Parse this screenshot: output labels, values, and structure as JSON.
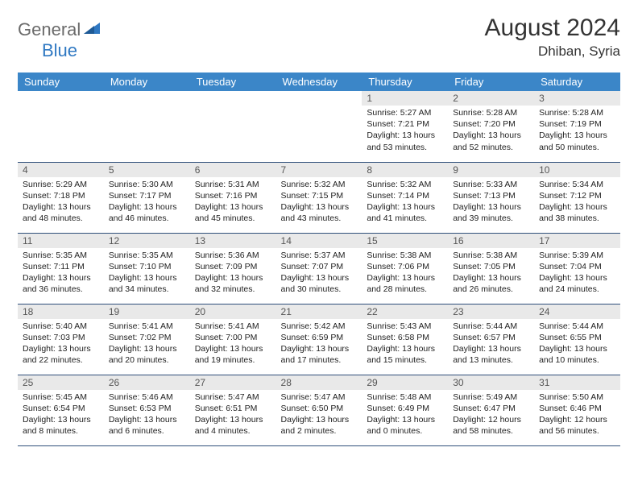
{
  "brand": {
    "word1": "General",
    "word2": "Blue",
    "color1": "#6b6b6b",
    "color2": "#2f78c2"
  },
  "title": "August 2024",
  "location": "Dhiban, Syria",
  "header_bg": "#3b86c8",
  "daynum_bg": "#e9e9e9",
  "row_border": "#2f4f7a",
  "weekdays": [
    "Sunday",
    "Monday",
    "Tuesday",
    "Wednesday",
    "Thursday",
    "Friday",
    "Saturday"
  ],
  "blanks_before": 4,
  "days": [
    {
      "n": 1,
      "sr": "5:27 AM",
      "ss": "7:21 PM",
      "dl": "13 hours and 53 minutes."
    },
    {
      "n": 2,
      "sr": "5:28 AM",
      "ss": "7:20 PM",
      "dl": "13 hours and 52 minutes."
    },
    {
      "n": 3,
      "sr": "5:28 AM",
      "ss": "7:19 PM",
      "dl": "13 hours and 50 minutes."
    },
    {
      "n": 4,
      "sr": "5:29 AM",
      "ss": "7:18 PM",
      "dl": "13 hours and 48 minutes."
    },
    {
      "n": 5,
      "sr": "5:30 AM",
      "ss": "7:17 PM",
      "dl": "13 hours and 46 minutes."
    },
    {
      "n": 6,
      "sr": "5:31 AM",
      "ss": "7:16 PM",
      "dl": "13 hours and 45 minutes."
    },
    {
      "n": 7,
      "sr": "5:32 AM",
      "ss": "7:15 PM",
      "dl": "13 hours and 43 minutes."
    },
    {
      "n": 8,
      "sr": "5:32 AM",
      "ss": "7:14 PM",
      "dl": "13 hours and 41 minutes."
    },
    {
      "n": 9,
      "sr": "5:33 AM",
      "ss": "7:13 PM",
      "dl": "13 hours and 39 minutes."
    },
    {
      "n": 10,
      "sr": "5:34 AM",
      "ss": "7:12 PM",
      "dl": "13 hours and 38 minutes."
    },
    {
      "n": 11,
      "sr": "5:35 AM",
      "ss": "7:11 PM",
      "dl": "13 hours and 36 minutes."
    },
    {
      "n": 12,
      "sr": "5:35 AM",
      "ss": "7:10 PM",
      "dl": "13 hours and 34 minutes."
    },
    {
      "n": 13,
      "sr": "5:36 AM",
      "ss": "7:09 PM",
      "dl": "13 hours and 32 minutes."
    },
    {
      "n": 14,
      "sr": "5:37 AM",
      "ss": "7:07 PM",
      "dl": "13 hours and 30 minutes."
    },
    {
      "n": 15,
      "sr": "5:38 AM",
      "ss": "7:06 PM",
      "dl": "13 hours and 28 minutes."
    },
    {
      "n": 16,
      "sr": "5:38 AM",
      "ss": "7:05 PM",
      "dl": "13 hours and 26 minutes."
    },
    {
      "n": 17,
      "sr": "5:39 AM",
      "ss": "7:04 PM",
      "dl": "13 hours and 24 minutes."
    },
    {
      "n": 18,
      "sr": "5:40 AM",
      "ss": "7:03 PM",
      "dl": "13 hours and 22 minutes."
    },
    {
      "n": 19,
      "sr": "5:41 AM",
      "ss": "7:02 PM",
      "dl": "13 hours and 20 minutes."
    },
    {
      "n": 20,
      "sr": "5:41 AM",
      "ss": "7:00 PM",
      "dl": "13 hours and 19 minutes."
    },
    {
      "n": 21,
      "sr": "5:42 AM",
      "ss": "6:59 PM",
      "dl": "13 hours and 17 minutes."
    },
    {
      "n": 22,
      "sr": "5:43 AM",
      "ss": "6:58 PM",
      "dl": "13 hours and 15 minutes."
    },
    {
      "n": 23,
      "sr": "5:44 AM",
      "ss": "6:57 PM",
      "dl": "13 hours and 13 minutes."
    },
    {
      "n": 24,
      "sr": "5:44 AM",
      "ss": "6:55 PM",
      "dl": "13 hours and 10 minutes."
    },
    {
      "n": 25,
      "sr": "5:45 AM",
      "ss": "6:54 PM",
      "dl": "13 hours and 8 minutes."
    },
    {
      "n": 26,
      "sr": "5:46 AM",
      "ss": "6:53 PM",
      "dl": "13 hours and 6 minutes."
    },
    {
      "n": 27,
      "sr": "5:47 AM",
      "ss": "6:51 PM",
      "dl": "13 hours and 4 minutes."
    },
    {
      "n": 28,
      "sr": "5:47 AM",
      "ss": "6:50 PM",
      "dl": "13 hours and 2 minutes."
    },
    {
      "n": 29,
      "sr": "5:48 AM",
      "ss": "6:49 PM",
      "dl": "13 hours and 0 minutes."
    },
    {
      "n": 30,
      "sr": "5:49 AM",
      "ss": "6:47 PM",
      "dl": "12 hours and 58 minutes."
    },
    {
      "n": 31,
      "sr": "5:50 AM",
      "ss": "6:46 PM",
      "dl": "12 hours and 56 minutes."
    }
  ],
  "labels": {
    "sunrise": "Sunrise:",
    "sunset": "Sunset:",
    "daylight": "Daylight:"
  }
}
